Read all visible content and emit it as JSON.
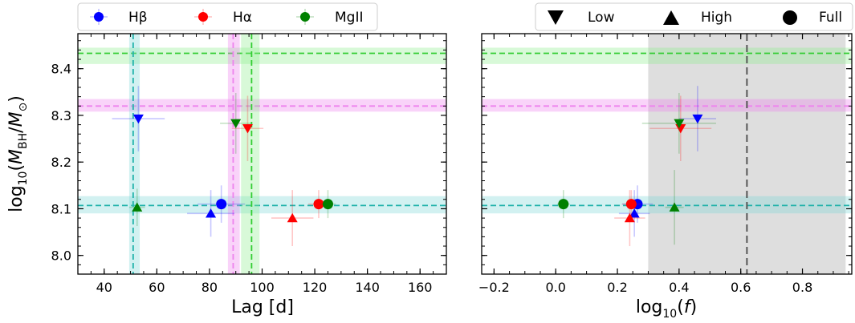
{
  "chart_data": [
    {
      "type": "scatter",
      "panel": "left",
      "xlabel": "Lag [d]",
      "ylabel": "log10(M_BH/M⊙)",
      "ylabel_parts": {
        "prefix": "log",
        "sub10": "10",
        "open": "(",
        "M": "M",
        "BH": "BH",
        "slash": "/",
        "sun": "⊙",
        "close": ")"
      },
      "xlim": [
        30,
        170
      ],
      "ylim": [
        7.96,
        8.475
      ],
      "xticks": [
        40,
        60,
        80,
        100,
        120,
        140,
        160
      ],
      "yticks": [
        8.0,
        8.1,
        8.2,
        8.3,
        8.4
      ],
      "ytick_labels": [
        "8.0",
        "8.1",
        "8.2",
        "8.3",
        "8.4"
      ],
      "legend": {
        "location": "top",
        "entries": [
          {
            "label": "Hβ",
            "color": "#0000ff"
          },
          {
            "label": "Hα",
            "color": "#ff0000"
          },
          {
            "label": "MgII",
            "color": "#008000"
          }
        ]
      },
      "reference_lines": {
        "horizontal": [
          {
            "value": 8.433,
            "band": [
              8.41,
              8.445
            ],
            "color": "#90ee90",
            "line_color": "#32cd32"
          },
          {
            "value": 8.32,
            "band": [
              8.308,
              8.335
            ],
            "color": "#ee82ee",
            "line_color": "#ee82ee"
          },
          {
            "value": 8.107,
            "band": [
              8.09,
              8.127
            ],
            "color": "#7fd8d8",
            "line_color": "#20b2aa"
          }
        ],
        "vertical": [
          {
            "value": 51,
            "band": [
              49.5,
              53.5
            ],
            "color": "#7fd8d8",
            "line_color": "#20b2aa"
          },
          {
            "value": 89,
            "band": [
              87,
              91.5
            ],
            "color": "#ee82ee",
            "line_color": "#ee82ee"
          },
          {
            "value": 96,
            "band": [
              92,
              99
            ],
            "color": "#90ee90",
            "line_color": "#32cd32"
          }
        ]
      },
      "series": [
        {
          "name": "Hβ",
          "color": "#0000ff",
          "points": [
            {
              "marker": "Low",
              "x": 53,
              "y": 8.293,
              "xerr": 10,
              "yerr": 0.07
            },
            {
              "marker": "High",
              "x": 80.5,
              "y": 8.09,
              "xerr": 9,
              "yerr": 0.05
            },
            {
              "marker": "Full",
              "x": 84.5,
              "y": 8.11,
              "xerr": 9,
              "yerr": 0.04
            }
          ]
        },
        {
          "name": "Hα",
          "color": "#ff0000",
          "points": [
            {
              "marker": "Low",
              "x": 94.5,
              "y": 8.272,
              "xerr": 6,
              "yerr": 0.07
            },
            {
              "marker": "High",
              "x": 111.5,
              "y": 8.08,
              "xerr": 8,
              "yerr": 0.06
            },
            {
              "marker": "Full",
              "x": 121.5,
              "y": 8.11,
              "xerr": 4,
              "yerr": 0.03
            }
          ]
        },
        {
          "name": "MgII",
          "color": "#008000",
          "points": [
            {
              "marker": "Low",
              "x": 90,
              "y": 8.283,
              "xerr": 6,
              "yerr": 0.065
            },
            {
              "marker": "High",
              "x": 52.5,
              "y": 8.103,
              "xerr": 3,
              "yerr": 0.04
            },
            {
              "marker": "Full",
              "x": 125,
              "y": 8.11,
              "xerr": 3,
              "yerr": 0.03
            }
          ]
        }
      ]
    },
    {
      "type": "scatter",
      "panel": "right",
      "xlabel": "log10(f)",
      "xlabel_parts": {
        "prefix": "log",
        "sub10": "10",
        "open": "(",
        "f": "f",
        "close": ")"
      },
      "xlim": [
        -0.24,
        0.96
      ],
      "ylim": [
        7.96,
        8.475
      ],
      "xticks": [
        -0.2,
        0.0,
        0.2,
        0.4,
        0.6,
        0.8
      ],
      "xtick_labels": [
        "−0.2",
        "0.0",
        "0.2",
        "0.4",
        "0.6",
        "0.8"
      ],
      "yticks": [
        8.0,
        8.1,
        8.2,
        8.3,
        8.4
      ],
      "legend": {
        "location": "top",
        "entries": [
          {
            "label": "Low",
            "marker": "down-triangle"
          },
          {
            "label": "High",
            "marker": "up-triangle"
          },
          {
            "label": "Full",
            "marker": "circle"
          }
        ]
      },
      "shaded_region": {
        "x": [
          0.3,
          0.94
        ],
        "color": "#d3d3d3"
      },
      "vertical_line": {
        "value": 0.62,
        "color": "#555555"
      },
      "reference_lines": {
        "horizontal": [
          {
            "value": 8.433,
            "band": [
              8.41,
              8.445
            ],
            "color": "#90ee90",
            "line_color": "#32cd32"
          },
          {
            "value": 8.32,
            "band": [
              8.308,
              8.335
            ],
            "color": "#ee82ee",
            "line_color": "#ee82ee"
          },
          {
            "value": 8.107,
            "band": [
              8.09,
              8.127
            ],
            "color": "#7fd8d8",
            "line_color": "#20b2aa"
          }
        ]
      },
      "series": [
        {
          "name": "Hβ",
          "color": "#0000ff",
          "points": [
            {
              "marker": "Low",
              "x": 0.46,
              "y": 8.293,
              "xerr": 0.06,
              "yerr": 0.07
            },
            {
              "marker": "High",
              "x": 0.255,
              "y": 8.09,
              "xerr": 0.05,
              "yerr": 0.05
            },
            {
              "marker": "Full",
              "x": 0.265,
              "y": 8.11,
              "xerr": 0.05,
              "yerr": 0.04
            }
          ]
        },
        {
          "name": "Hα",
          "color": "#ff0000",
          "points": [
            {
              "marker": "Low",
              "x": 0.405,
              "y": 8.272,
              "xerr": 0.1,
              "yerr": 0.07
            },
            {
              "marker": "High",
              "x": 0.24,
              "y": 8.08,
              "xerr": 0.05,
              "yerr": 0.06
            },
            {
              "marker": "Full",
              "x": 0.245,
              "y": 8.11,
              "xerr": 0.03,
              "yerr": 0.03
            }
          ]
        },
        {
          "name": "MgII",
          "color": "#008000",
          "points": [
            {
              "marker": "Low",
              "x": 0.4,
              "y": 8.283,
              "xerr": 0.12,
              "yerr": 0.065
            },
            {
              "marker": "High",
              "x": 0.385,
              "y": 8.103,
              "xerr": 0.03,
              "yerr": 0.08
            },
            {
              "marker": "Full",
              "x": 0.025,
              "y": 8.11,
              "xerr": 0.02,
              "yerr": 0.03
            }
          ]
        }
      ]
    }
  ]
}
